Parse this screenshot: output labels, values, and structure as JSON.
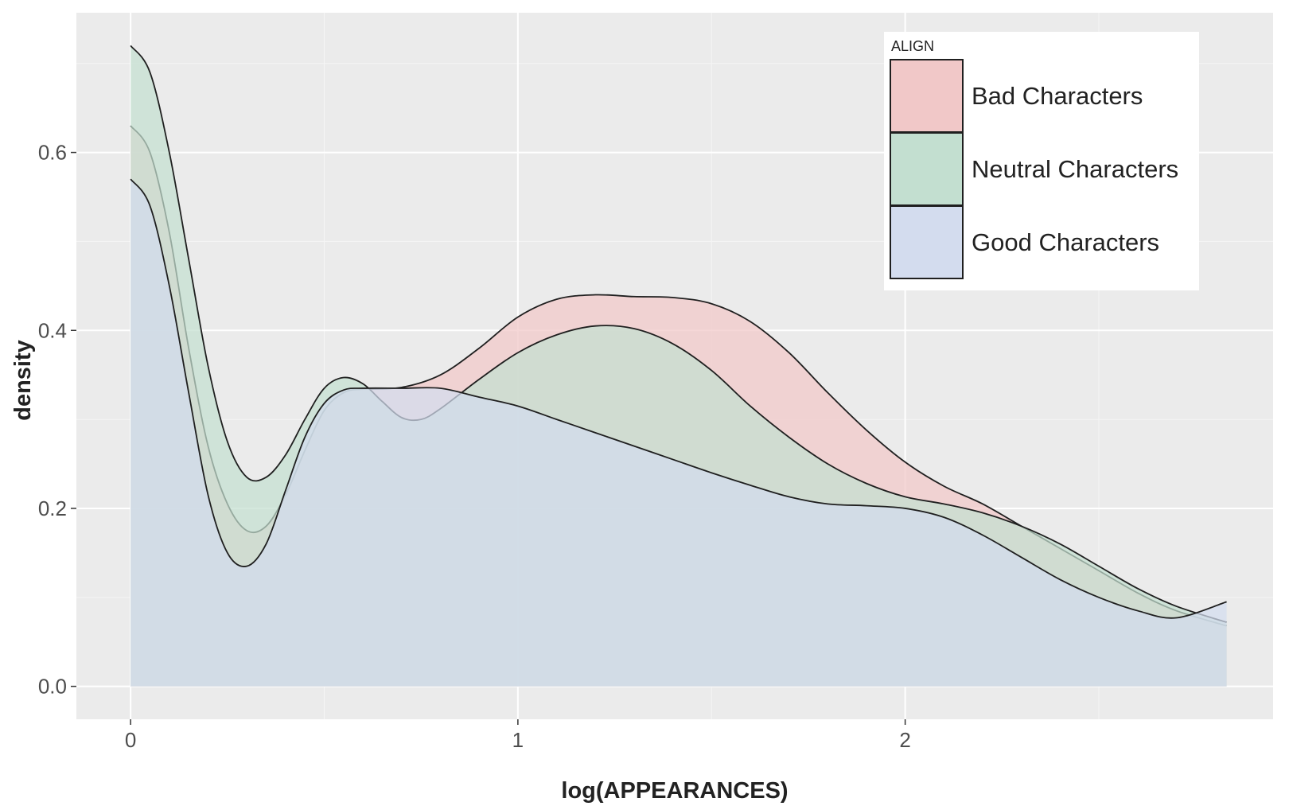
{
  "chart_data": {
    "type": "area",
    "xlabel": "log(APPEARANCES)",
    "ylabel": "density",
    "xlim": [
      -0.14,
      2.95
    ],
    "ylim": [
      -0.037,
      0.757
    ],
    "x_ticks": [
      0,
      1,
      2
    ],
    "x_tick_labels": [
      "0",
      "1",
      "2"
    ],
    "y_ticks": [
      0.0,
      0.2,
      0.4,
      0.6
    ],
    "y_tick_labels": [
      "0.0",
      "0.2",
      "0.4",
      "0.6"
    ],
    "grid": true,
    "legend_title": "ALIGN",
    "legend_position": "top-right",
    "series": [
      {
        "name": "Bad Characters",
        "color": "#f1c8c8",
        "points": [
          [
            0,
            0.63
          ],
          [
            0.05,
            0.6
          ],
          [
            0.1,
            0.51
          ],
          [
            0.15,
            0.38
          ],
          [
            0.2,
            0.27
          ],
          [
            0.25,
            0.205
          ],
          [
            0.3,
            0.175
          ],
          [
            0.35,
            0.18
          ],
          [
            0.4,
            0.215
          ],
          [
            0.45,
            0.265
          ],
          [
            0.5,
            0.31
          ],
          [
            0.55,
            0.33
          ],
          [
            0.6,
            0.334
          ],
          [
            0.7,
            0.336
          ],
          [
            0.8,
            0.35
          ],
          [
            0.9,
            0.38
          ],
          [
            1.0,
            0.415
          ],
          [
            1.1,
            0.435
          ],
          [
            1.2,
            0.44
          ],
          [
            1.3,
            0.438
          ],
          [
            1.4,
            0.437
          ],
          [
            1.5,
            0.43
          ],
          [
            1.6,
            0.41
          ],
          [
            1.7,
            0.375
          ],
          [
            1.8,
            0.33
          ],
          [
            1.9,
            0.288
          ],
          [
            2.0,
            0.252
          ],
          [
            2.1,
            0.225
          ],
          [
            2.2,
            0.205
          ],
          [
            2.3,
            0.18
          ],
          [
            2.4,
            0.155
          ],
          [
            2.5,
            0.13
          ],
          [
            2.6,
            0.105
          ],
          [
            2.7,
            0.085
          ],
          [
            2.83,
            0.068
          ]
        ]
      },
      {
        "name": "Neutral Characters",
        "color": "#c3dfd0",
        "points": [
          [
            0,
            0.72
          ],
          [
            0.05,
            0.69
          ],
          [
            0.1,
            0.6
          ],
          [
            0.15,
            0.48
          ],
          [
            0.2,
            0.36
          ],
          [
            0.25,
            0.275
          ],
          [
            0.3,
            0.235
          ],
          [
            0.35,
            0.235
          ],
          [
            0.4,
            0.26
          ],
          [
            0.45,
            0.3
          ],
          [
            0.5,
            0.335
          ],
          [
            0.55,
            0.347
          ],
          [
            0.6,
            0.34
          ],
          [
            0.65,
            0.32
          ],
          [
            0.7,
            0.302
          ],
          [
            0.75,
            0.3
          ],
          [
            0.8,
            0.312
          ],
          [
            0.9,
            0.345
          ],
          [
            1.0,
            0.375
          ],
          [
            1.1,
            0.395
          ],
          [
            1.2,
            0.405
          ],
          [
            1.3,
            0.402
          ],
          [
            1.4,
            0.385
          ],
          [
            1.5,
            0.355
          ],
          [
            1.6,
            0.315
          ],
          [
            1.7,
            0.28
          ],
          [
            1.8,
            0.25
          ],
          [
            1.9,
            0.228
          ],
          [
            2.0,
            0.213
          ],
          [
            2.1,
            0.205
          ],
          [
            2.2,
            0.195
          ],
          [
            2.3,
            0.18
          ],
          [
            2.4,
            0.16
          ],
          [
            2.5,
            0.135
          ],
          [
            2.6,
            0.11
          ],
          [
            2.7,
            0.09
          ],
          [
            2.83,
            0.072
          ]
        ]
      },
      {
        "name": "Good Characters",
        "color": "#d3dcee",
        "points": [
          [
            0,
            0.57
          ],
          [
            0.05,
            0.54
          ],
          [
            0.1,
            0.45
          ],
          [
            0.15,
            0.33
          ],
          [
            0.2,
            0.215
          ],
          [
            0.25,
            0.15
          ],
          [
            0.3,
            0.135
          ],
          [
            0.35,
            0.16
          ],
          [
            0.4,
            0.22
          ],
          [
            0.45,
            0.28
          ],
          [
            0.5,
            0.318
          ],
          [
            0.55,
            0.333
          ],
          [
            0.6,
            0.335
          ],
          [
            0.7,
            0.335
          ],
          [
            0.8,
            0.335
          ],
          [
            0.9,
            0.325
          ],
          [
            1.0,
            0.315
          ],
          [
            1.1,
            0.3
          ],
          [
            1.2,
            0.285
          ],
          [
            1.3,
            0.27
          ],
          [
            1.4,
            0.255
          ],
          [
            1.5,
            0.24
          ],
          [
            1.6,
            0.226
          ],
          [
            1.7,
            0.213
          ],
          [
            1.8,
            0.205
          ],
          [
            1.9,
            0.203
          ],
          [
            2.0,
            0.2
          ],
          [
            2.1,
            0.19
          ],
          [
            2.2,
            0.17
          ],
          [
            2.3,
            0.145
          ],
          [
            2.4,
            0.12
          ],
          [
            2.5,
            0.1
          ],
          [
            2.6,
            0.085
          ],
          [
            2.7,
            0.077
          ],
          [
            2.83,
            0.095
          ]
        ]
      }
    ]
  }
}
